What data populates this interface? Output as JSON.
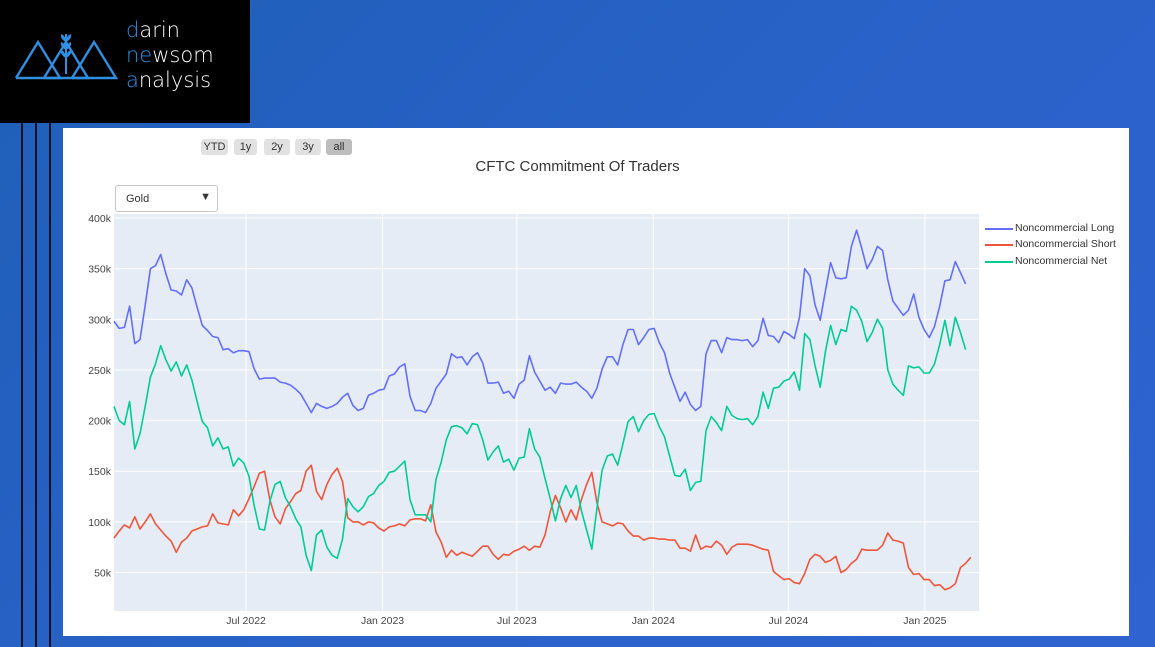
{
  "logo": {
    "line1_accent": "d",
    "line1_rest": "arin",
    "line2_accent": "ne",
    "line2_mid": "w",
    "line2_rest": "som",
    "line3_accent": "a",
    "line3_rest": "nalysis"
  },
  "range_buttons": [
    {
      "label": "YTD"
    },
    {
      "label": "1y"
    },
    {
      "label": "2y"
    },
    {
      "label": "3y"
    },
    {
      "label": "all",
      "active": true
    }
  ],
  "dropdown": {
    "selected": "Gold"
  },
  "chart_data": {
    "type": "line",
    "title": "CFTC Commitment Of Traders",
    "x_start": "2022-01-04",
    "x_step_days": 7,
    "ylim": [
      12000,
      404000
    ],
    "y_ticks": [
      50000,
      100000,
      150000,
      200000,
      250000,
      300000,
      350000,
      400000
    ],
    "y_tick_labels": [
      "50k",
      "100k",
      "150k",
      "200k",
      "250k",
      "300k",
      "350k",
      "400k"
    ],
    "x_ticks": [
      "2022-07-01",
      "2023-01-01",
      "2023-07-01",
      "2024-01-01",
      "2024-07-01",
      "2025-01-01"
    ],
    "x_tick_labels": [
      "Jul 2022",
      "Jan 2023",
      "Jul 2023",
      "Jan 2024",
      "Jul 2024",
      "Jan 2025"
    ],
    "x_end": "2025-03-15",
    "legend_position": "top-right",
    "grid": true,
    "series": [
      {
        "name": "Noncommercial Long",
        "color": "#636efa",
        "values": [
          298000,
          291000,
          292000,
          313000,
          276000,
          280000,
          314000,
          350000,
          353000,
          364000,
          345000,
          329000,
          328000,
          324000,
          339000,
          331000,
          312000,
          294000,
          289000,
          283000,
          282000,
          270000,
          271000,
          267000,
          269000,
          269000,
          268000,
          251000,
          241000,
          242000,
          242000,
          242000,
          238000,
          237000,
          235000,
          231000,
          226000,
          217000,
          208000,
          217000,
          214000,
          212000,
          214000,
          217000,
          223000,
          227000,
          215000,
          210000,
          212000,
          225000,
          227000,
          230000,
          231000,
          244000,
          246000,
          253000,
          256000,
          224000,
          210000,
          210000,
          208000,
          217000,
          232000,
          239000,
          246000,
          266000,
          262000,
          263000,
          255000,
          263000,
          267000,
          257000,
          237000,
          237000,
          238000,
          227000,
          229000,
          222000,
          236000,
          240000,
          264000,
          248000,
          239000,
          230000,
          233000,
          227000,
          237000,
          236000,
          236000,
          238000,
          233000,
          229000,
          222000,
          232000,
          251000,
          263000,
          263000,
          255000,
          275000,
          290000,
          290000,
          275000,
          282000,
          290000,
          291000,
          277000,
          267000,
          247000,
          233000,
          219000,
          228000,
          216000,
          210000,
          214000,
          266000,
          279000,
          279000,
          267000,
          282000,
          280000,
          280000,
          279000,
          280000,
          273000,
          279000,
          301000,
          284000,
          283000,
          277000,
          288000,
          285000,
          281000,
          302000,
          350000,
          343000,
          314000,
          299000,
          328000,
          356000,
          341000,
          340000,
          341000,
          372000,
          388000,
          370000,
          350000,
          359000,
          372000,
          368000,
          339000,
          318000,
          311000,
          304000,
          309000,
          325000,
          302000,
          290000,
          282000,
          293000,
          313000,
          338000,
          339000,
          357000,
          346000,
          335000
        ]
      },
      {
        "name": "Noncommercial Short",
        "color": "#ef553b",
        "values": [
          84000,
          91000,
          97000,
          94000,
          105000,
          93000,
          100000,
          108000,
          98000,
          92000,
          86000,
          81000,
          70000,
          80000,
          84000,
          91000,
          93000,
          95000,
          96000,
          108000,
          99000,
          98000,
          97000,
          112000,
          106000,
          112000,
          123000,
          135000,
          148000,
          150000,
          122000,
          105000,
          98000,
          113000,
          120000,
          128000,
          131000,
          150000,
          156000,
          130000,
          122000,
          137000,
          147000,
          153000,
          140000,
          104000,
          100000,
          100000,
          97000,
          100000,
          99000,
          94000,
          91000,
          95000,
          96000,
          98000,
          96000,
          102000,
          103000,
          103000,
          101000,
          117000,
          90000,
          80000,
          65000,
          72000,
          67000,
          70000,
          68000,
          66000,
          71000,
          76000,
          76000,
          68000,
          63000,
          68000,
          67000,
          71000,
          73000,
          76000,
          72000,
          76000,
          75000,
          87000,
          110000,
          126000,
          114000,
          100000,
          112000,
          102000,
          122000,
          137000,
          149000,
          119000,
          100000,
          98000,
          96000,
          99000,
          98000,
          91000,
          86000,
          86000,
          82000,
          84000,
          84000,
          83000,
          83000,
          82000,
          82000,
          74000,
          74000,
          71000,
          87000,
          73000,
          76000,
          75000,
          81000,
          77000,
          68000,
          75000,
          78000,
          78000,
          78000,
          77000,
          75000,
          73000,
          72000,
          51000,
          47000,
          43000,
          44000,
          40000,
          39000,
          49000,
          63000,
          68000,
          66000,
          60000,
          62000,
          66000,
          50000,
          53000,
          59000,
          63000,
          73000,
          72000,
          72000,
          72000,
          77000,
          89000,
          82000,
          81000,
          79000,
          55000,
          48000,
          49000,
          43000,
          43000,
          37000,
          38000,
          33000,
          35000,
          39000,
          55000,
          59000,
          65000
        ]
      },
      {
        "name": "Noncommercial Net",
        "color": "#00cc96",
        "values": [
          214000,
          200000,
          196000,
          219000,
          172000,
          187000,
          214000,
          243000,
          256000,
          274000,
          260000,
          249000,
          258000,
          244000,
          255000,
          240000,
          219000,
          199000,
          193000,
          175000,
          183000,
          172000,
          174000,
          155000,
          163000,
          158000,
          145000,
          116000,
          93000,
          92000,
          120000,
          137000,
          140000,
          124000,
          115000,
          103000,
          95000,
          67000,
          52000,
          87000,
          92000,
          75000,
          67000,
          64000,
          83000,
          123000,
          115000,
          110000,
          115000,
          125000,
          128000,
          136000,
          140000,
          149000,
          150000,
          155000,
          160000,
          122000,
          107000,
          107000,
          107000,
          100000,
          142000,
          159000,
          181000,
          194000,
          195000,
          193000,
          187000,
          197000,
          196000,
          181000,
          161000,
          169000,
          175000,
          159000,
          162000,
          151000,
          163000,
          164000,
          192000,
          172000,
          164000,
          143000,
          123000,
          101000,
          123000,
          136000,
          124000,
          136000,
          111000,
          92000,
          73000,
          113000,
          151000,
          165000,
          167000,
          156000,
          177000,
          199000,
          204000,
          189000,
          200000,
          206000,
          207000,
          194000,
          184000,
          165000,
          146000,
          145000,
          152000,
          131000,
          139000,
          140000,
          190000,
          204000,
          198000,
          190000,
          214000,
          205000,
          202000,
          201000,
          202000,
          196000,
          204000,
          228000,
          212000,
          232000,
          233000,
          239000,
          241000,
          248000,
          230000,
          286000,
          280000,
          254000,
          233000,
          268000,
          294000,
          275000,
          290000,
          288000,
          313000,
          309000,
          298000,
          278000,
          287000,
          300000,
          291000,
          250000,
          236000,
          230000,
          225000,
          254000,
          252000,
          253000,
          247000,
          247000,
          256000,
          275000,
          299000,
          274000,
          302000,
          287000,
          270000
        ]
      }
    ]
  }
}
